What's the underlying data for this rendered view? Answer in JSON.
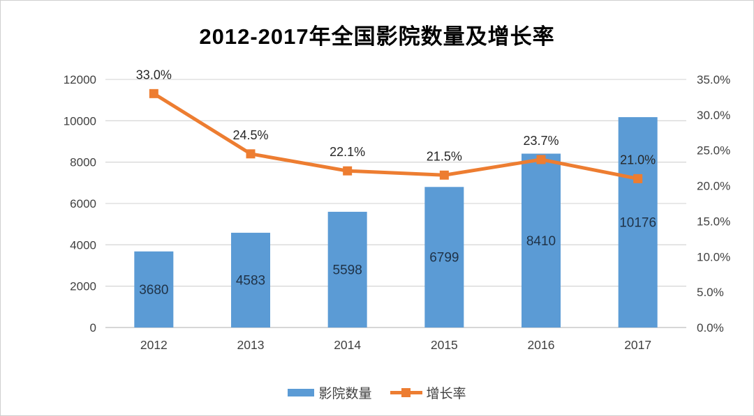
{
  "title": "2012-2017年全国影院数量及增长率",
  "colors": {
    "bar": "#5B9BD5",
    "line": "#ED7D31",
    "gridline": "#D9D9D9",
    "axis_line": "#BFBFBF",
    "tick_text": "#404040",
    "point_label_text": "#262626",
    "bar_label_text": "#1F3247",
    "title_text": "#000000"
  },
  "legend": {
    "items": [
      {
        "label": "影院数量",
        "swatch": "bar-swatch",
        "color": "#5B9BD5"
      },
      {
        "label": "增长率",
        "swatch": "line-marker-swatch",
        "color": "#ED7D31"
      }
    ],
    "position": "bottom"
  },
  "chart_data": {
    "type": "combo-bar-line",
    "title": "2012-2017年全国影院数量及增长率",
    "categories": [
      "2012",
      "2013",
      "2014",
      "2015",
      "2016",
      "2017"
    ],
    "series": [
      {
        "name": "影院数量",
        "type": "bar",
        "axis": "left",
        "color": "#5B9BD5",
        "values": [
          3680,
          4583,
          5598,
          6799,
          8410,
          10176
        ],
        "labels": [
          "3680",
          "4583",
          "5598",
          "6799",
          "8410",
          "10176"
        ],
        "label_position": "inside-center"
      },
      {
        "name": "增长率",
        "type": "line",
        "axis": "right",
        "color": "#ED7D31",
        "marker": "square",
        "values": [
          33.0,
          24.5,
          22.1,
          21.5,
          23.7,
          21.0
        ],
        "labels": [
          "33.0%",
          "24.5%",
          "22.1%",
          "21.5%",
          "23.7%",
          "21.0%"
        ],
        "label_position": "above"
      }
    ],
    "left_axis": {
      "min": 0,
      "max": 12000,
      "step": 2000,
      "ticks": [
        "0",
        "2000",
        "4000",
        "6000",
        "8000",
        "10000",
        "12000"
      ]
    },
    "right_axis": {
      "min": 0,
      "max": 35,
      "step": 5,
      "ticks": [
        "0.0%",
        "5.0%",
        "10.0%",
        "15.0%",
        "20.0%",
        "25.0%",
        "30.0%",
        "35.0%"
      ]
    },
    "grid": true,
    "legend_position": "bottom"
  }
}
